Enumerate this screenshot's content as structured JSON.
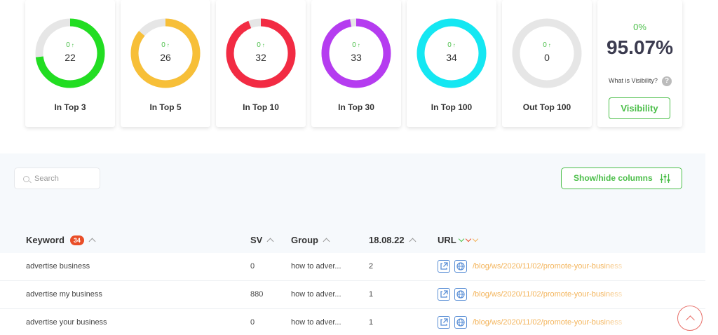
{
  "summary_cards": [
    {
      "label": "In Top 3",
      "delta": "0",
      "count": "22",
      "color": "#22dd22",
      "fill": 0.73
    },
    {
      "label": "In Top 5",
      "delta": "0",
      "count": "26",
      "color": "#f7bf38",
      "fill": 0.86
    },
    {
      "label": "In Top 10",
      "delta": "0",
      "count": "32",
      "color": "#f22b43",
      "fill": 0.94
    },
    {
      "label": "In Top 30",
      "delta": "0",
      "count": "33",
      "color": "#b53cf0",
      "fill": 0.97
    },
    {
      "label": "In Top 100",
      "delta": "0",
      "count": "34",
      "color": "#14e7f2",
      "fill": 1.0
    },
    {
      "label": "Out Top 100",
      "delta": "0",
      "count": "0",
      "color": "#e6e6e6",
      "fill": 0.0
    }
  ],
  "visibility": {
    "delta": "0%",
    "percent": "95.07%",
    "question": "What is Visibility?",
    "help_glyph": "?",
    "button_label": "Visibility"
  },
  "toolbar": {
    "search_placeholder": "Search",
    "columns_button": "Show/hide columns"
  },
  "table": {
    "keyword_header": "Keyword",
    "keyword_count": "34",
    "sv_header": "SV",
    "group_header": "Group",
    "date_header": "18.08.22",
    "url_header": "URL",
    "rows": [
      {
        "keyword": "advertise business",
        "sv": "0",
        "group": "how to adver...",
        "position": "2",
        "url": "/blog/ws/2020/11/02/promote-your-business"
      },
      {
        "keyword": "advertise my business",
        "sv": "880",
        "group": "how to adver...",
        "position": "1",
        "url": "/blog/ws/2020/11/02/promote-your-business"
      },
      {
        "keyword": "advertise your business",
        "sv": "0",
        "group": "how to adver...",
        "position": "1",
        "url": "/blog/ws/2020/11/02/promote-your-business"
      }
    ]
  },
  "colors": {
    "accent_green": "#4cbf4a",
    "badge_red": "#e94e28",
    "url_orange": "#f3b45b",
    "link_blue": "#5a8fd6"
  }
}
